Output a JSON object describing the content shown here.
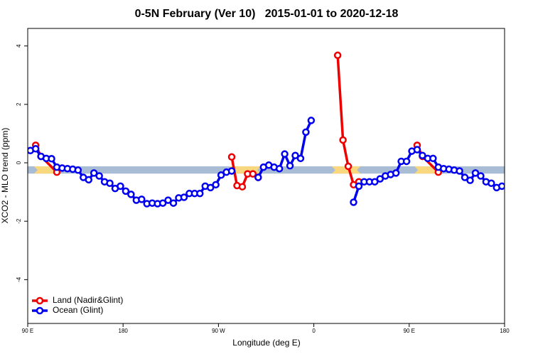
{
  "chart_data": {
    "type": "line",
    "title": "0-5N February (Ver 10)   2015-01-01 to 2020-12-18",
    "xlabel": "Longitude (deg E)",
    "ylabel": "XCO2 - MLO trend (ppm)",
    "xlim": [
      90,
      540
    ],
    "ylim": [
      -5.5,
      4.6
    ],
    "xticks": [
      {
        "value": 90,
        "label": "90 E"
      },
      {
        "value": 180,
        "label": "180"
      },
      {
        "value": 270,
        "label": "90 W"
      },
      {
        "value": 360,
        "label": "0"
      },
      {
        "value": 450,
        "label": "90 E"
      },
      {
        "value": 540,
        "label": "180"
      }
    ],
    "yticks": [
      -4,
      -2,
      0,
      2,
      4
    ],
    "legend": "bottom-left",
    "band": {
      "y": [
        -0.37,
        -0.12
      ],
      "color": "#a8bcd6",
      "land_color": "#f9d77e",
      "land_spans": [
        [
          96,
          118
        ],
        [
          280,
          310
        ],
        [
          377,
          404
        ],
        [
          455,
          480
        ]
      ]
    },
    "series": [
      {
        "name": "Land (Nadir&Glint)",
        "color": "#ee0000",
        "x": [
          97.5,
          102.5,
          117.5,
          null,
          282.5,
          287.5,
          292.5,
          297.5,
          302.5,
          307.5,
          null,
          382.5,
          387.5,
          392.5,
          397.5,
          402.5,
          null,
          457.5,
          462.5,
          477.5
        ],
        "values": [
          0.6,
          0.22,
          -0.32,
          null,
          0.2,
          -0.78,
          -0.82,
          -0.38,
          -0.38,
          -0.5,
          null,
          3.68,
          0.78,
          -0.12,
          -0.75,
          -0.65,
          null,
          0.6,
          0.22,
          -0.32
        ]
      },
      {
        "name": "Ocean (Glint)",
        "color": "#0000ee",
        "x": [
          92.5,
          97.5,
          102.5,
          107.5,
          112.5,
          117.5,
          122.5,
          127.5,
          132.5,
          137.5,
          142.5,
          147.5,
          152.5,
          157.5,
          162.5,
          167.5,
          172.5,
          177.5,
          182.5,
          187.5,
          192.5,
          197.5,
          202.5,
          207.5,
          212.5,
          217.5,
          222.5,
          227.5,
          232.5,
          237.5,
          242.5,
          247.5,
          252.5,
          257.5,
          262.5,
          267.5,
          272.5,
          277.5,
          282.5,
          null,
          307.5,
          312.5,
          317.5,
          322.5,
          327.5,
          332.5,
          337.5,
          342.5,
          347.5,
          352.5,
          357.5,
          null,
          397.5,
          402.5,
          407.5,
          412.5,
          417.5,
          422.5,
          427.5,
          432.5,
          437.5,
          442.5,
          447.5,
          452.5,
          457.5,
          462.5,
          467.5,
          472.5,
          477.5,
          482.5,
          487.5,
          492.5,
          497.5,
          502.5,
          507.5,
          512.5,
          517.5,
          522.5,
          527.5,
          532.5,
          537.5
        ],
        "values": [
          0.42,
          0.48,
          0.22,
          0.15,
          0.14,
          -0.15,
          -0.18,
          -0.2,
          -0.22,
          -0.25,
          -0.5,
          -0.58,
          -0.35,
          -0.45,
          -0.65,
          -0.7,
          -0.88,
          -0.8,
          -0.97,
          -1.08,
          -1.28,
          -1.25,
          -1.4,
          -1.38,
          -1.4,
          -1.38,
          -1.28,
          -1.38,
          -1.2,
          -1.18,
          -1.05,
          -1.05,
          -1.05,
          -0.8,
          -0.85,
          -0.75,
          -0.42,
          -0.32,
          -0.28,
          null,
          -0.5,
          -0.15,
          -0.08,
          -0.15,
          -0.2,
          0.3,
          -0.1,
          0.25,
          0.15,
          1.05,
          1.45,
          null,
          -1.35,
          -0.8,
          -0.65,
          -0.65,
          -0.65,
          -0.55,
          -0.45,
          -0.4,
          -0.35,
          0.05,
          0.05,
          0.4,
          0.45,
          0.25,
          0.15,
          0.15,
          -0.15,
          -0.2,
          -0.22,
          -0.25,
          -0.28,
          -0.5,
          -0.6,
          -0.35,
          -0.45,
          -0.65,
          -0.7,
          -0.85,
          -0.8
        ]
      }
    ]
  }
}
